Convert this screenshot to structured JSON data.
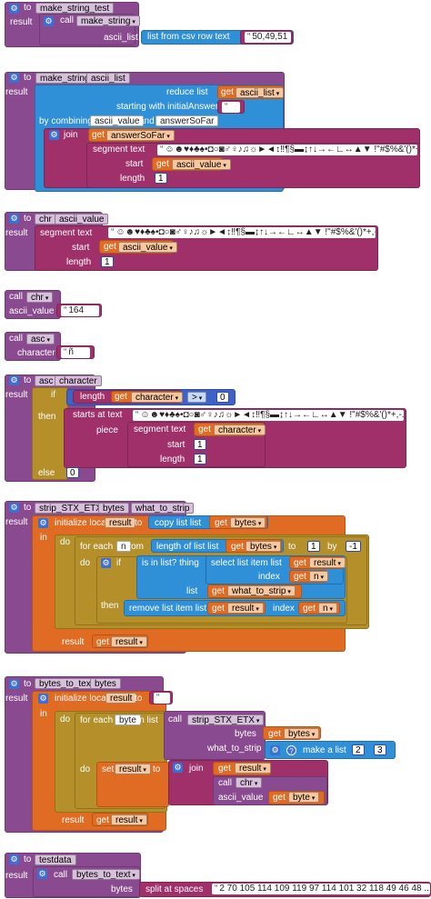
{
  "kw": {
    "to": "to",
    "result": "result",
    "call": "call",
    "get": "get",
    "join": "join",
    "if": "if",
    "then": "then",
    "else": "else",
    "in": "in",
    "do": "do",
    "set": "set",
    "initialize_local": "initialize local",
    "start": "start",
    "length": "length",
    "segment_text": "segment  text",
    "piece": "piece",
    "list": "list",
    "index": "index"
  },
  "b1": {
    "name": "make_string_test",
    "call": "make_string",
    "param": "ascii_list",
    "list_from_csv": "list from csv row  text",
    "csv": "50,49,51"
  },
  "b2": {
    "name": "make_string",
    "arg": "ascii_list",
    "reduce": "reduce  list",
    "var1": "ascii_list",
    "starting": "starting with initialAnswer",
    "combining": "by combining",
    "a1": "ascii_value",
    "and": "and",
    "a2": "answerSoFar",
    "v_answer": "answerSoFar",
    "segment": "segment  text",
    "longstr": "☺☻♥♦♣♠•◘○◙♂♀♪♫☼►◄↕‼¶§▬↨↑↓→←∟↔▲▼ !\"#$%&'()*+,-./0...",
    "v_ascii": "ascii_value",
    "one": "1"
  },
  "b3": {
    "name": "chr",
    "arg": "ascii_value",
    "longstr": "☺☻♥♦♣♠•◘○◙♂♀♪♫☼►◄↕‼¶§▬↨↑↓→←∟↔▲▼ !\"#$%&'()*+,-./0...",
    "v_ascii": "ascii_value",
    "one": "1"
  },
  "b4": {
    "call": "chr",
    "param": "ascii_value",
    "value": "164"
  },
  "b5": {
    "call": "asc",
    "param": "character",
    "value": "ñ"
  },
  "b6": {
    "name": "asc",
    "arg": "character",
    "v_char": "character",
    "op": ">",
    "zero": "0",
    "starts_at": "starts at  text",
    "longstr": "☺☻♥♦♣♠•◘○◙♂♀♪♫☼►◄↕‼¶§▬↨↑↓→←∟↔▲▼ !\"#$%&'()*+,-./0...",
    "one": "1",
    "else_val": "0"
  },
  "b7": {
    "name": "strip_STX_ETX",
    "a1": "bytes",
    "a2": "what_to_strip",
    "local": "result",
    "copy": "copy list  list",
    "v_bytes": "bytes",
    "for_each": "for each",
    "n": "n",
    "from": "from",
    "length_of": "length of list  list",
    "to_lbl": "to",
    "one": "1",
    "by": "by",
    "neg1": "-1",
    "in_list": "is in list? thing",
    "select": "select list item  list",
    "v_result": "result",
    "v_n": "n",
    "v_what": "what_to_strip",
    "remove": "remove list item  list"
  },
  "b8": {
    "name": "bytes_to_text",
    "arg": "bytes",
    "local": "result",
    "empty": "",
    "for_each": "for each",
    "byte": "byte",
    "in_list": "in list",
    "call_strip": "strip_STX_ETX",
    "p_bytes": "bytes",
    "p_what": "what_to_strip",
    "v_bytes": "bytes",
    "make_list": "make a list",
    "two": "2",
    "three": "3",
    "set_result": "result",
    "v_result": "result",
    "call_chr": "chr",
    "p_ascii": "ascii_value",
    "v_byte": "byte"
  },
  "b9": {
    "name": "testdata",
    "call": "bytes_to_text",
    "param": "bytes",
    "split": "split at spaces",
    "data": "2 70 105 114 109 119 97 114 101 32 118 49 46 48 ..."
  }
}
